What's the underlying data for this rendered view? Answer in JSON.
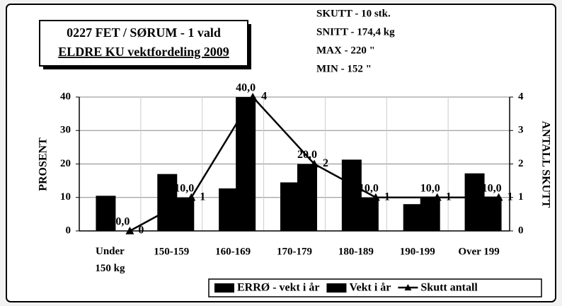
{
  "chart_data": {
    "type": "bar-line",
    "title": [
      "0227 FET / SØRUM - 1 vald",
      "ELDRE KU vektfordeling 2009"
    ],
    "annotations": [
      "SKUTT -   10 stk.",
      "SNITT -   174,4   kg",
      "MAX    -    220  \"",
      "MIN    -    152  \""
    ],
    "ylabel": "PROSENT",
    "y2label": "ANTALL SKUTT",
    "categories": [
      "Under 150 kg",
      "150-159",
      "160-169",
      "170-179",
      "180-189",
      "190-199",
      "Over 199"
    ],
    "series": [
      {
        "name": "ERRØ - vekt i år",
        "color": "#000000",
        "kind": "bar",
        "values": [
          10.5,
          17,
          12.7,
          14.5,
          21.3,
          8,
          17.2
        ]
      },
      {
        "name": "Vekt i år",
        "color": "#000000",
        "kind": "bar",
        "values": [
          0,
          10,
          40,
          20,
          10,
          10,
          10
        ],
        "value_labels": [
          "0,0",
          "10,0",
          "40,0",
          "20,0",
          "10,0",
          "10,0",
          "10,0"
        ]
      },
      {
        "name": "Skutt antall",
        "color": "#000000",
        "kind": "line",
        "axis": "y2",
        "values": [
          0,
          1,
          4,
          2,
          1,
          1,
          1
        ]
      }
    ],
    "ylim": [
      0,
      40
    ],
    "yticks": [
      0,
      10,
      20,
      30,
      40
    ],
    "y2lim": [
      0,
      4
    ],
    "y2ticks": [
      0,
      1,
      2,
      3,
      4
    ],
    "grid": true,
    "legend": "bottom"
  }
}
